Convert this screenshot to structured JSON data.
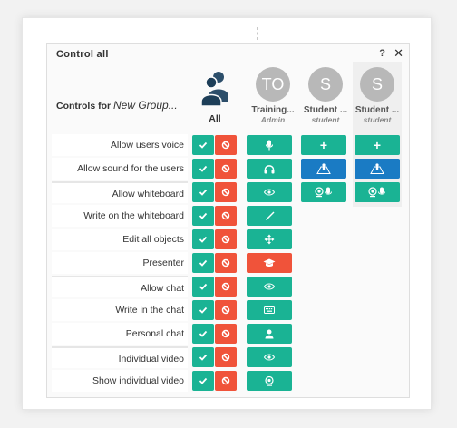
{
  "dialog": {
    "title": "Control all",
    "help_label": "?",
    "close_label": "✕"
  },
  "header": {
    "controls_for_label": "Controls for",
    "group_name": "New Group...",
    "all_label": "All",
    "users": [
      {
        "initials": "TO",
        "name": "Training...",
        "role": "Admin"
      },
      {
        "initials": "S",
        "name": "Student ...",
        "role": "student"
      },
      {
        "initials": "S",
        "name": "Student ...",
        "role": "student"
      }
    ]
  },
  "rows": [
    {
      "label": "Allow users voice",
      "group_icon": "microphone-icon"
    },
    {
      "label": "Allow sound for the users",
      "group_icon": "headphones-icon"
    },
    {
      "label": "Allow whiteboard",
      "group_icon": "eye-icon"
    },
    {
      "label": "Write on the whiteboard",
      "group_icon": "pen-icon"
    },
    {
      "label": "Edit all objects",
      "group_icon": "move-icon"
    },
    {
      "label": "Presenter",
      "group_icon": "graduation-cap-icon"
    },
    {
      "label": "Allow chat",
      "group_icon": "eye-icon"
    },
    {
      "label": "Write in the chat",
      "group_icon": "keyboard-icon"
    },
    {
      "label": "Personal chat",
      "group_icon": "user-icon"
    },
    {
      "label": "Individual video",
      "group_icon": "eye-icon"
    },
    {
      "label": "Show individual video",
      "group_icon": "webcam-icon"
    }
  ],
  "user_controls": {
    "add_voice_label": "+",
    "row1_icon": "presenter-stage-icon",
    "row2_icon": "webcam-mic-icon"
  },
  "colors": {
    "green": "#1ab394",
    "red": "#f0533a",
    "blue": "#1a7bc4",
    "avatar": "#b8b8b8"
  }
}
